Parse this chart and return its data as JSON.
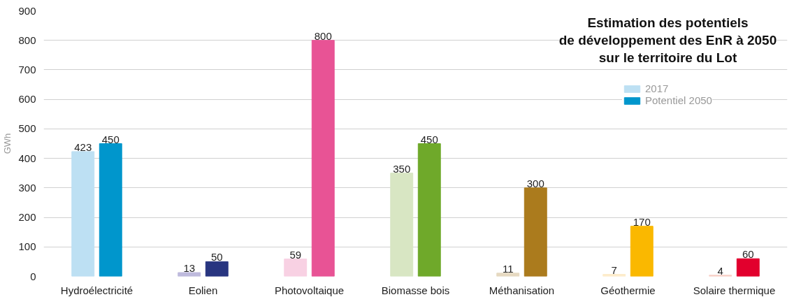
{
  "chart_data": {
    "type": "bar",
    "title": "Estimation des potentiels\nde développement des EnR à 2050\nsur le territoire du Lot",
    "ylabel": "GWh",
    "categories": [
      "Hydroélectricité",
      "Eolien",
      "Photovoltaique",
      "Biomasse bois",
      "Méthanisation",
      "Géothermie",
      "Solaire thermique"
    ],
    "series": [
      {
        "name": "2017",
        "color": "#bde0f3",
        "colors": [
          "#bde0f3",
          "#bebadd",
          "#f8d1e3",
          "#d8e6c3",
          "#e6d9c1",
          "#fdeccb",
          "#f8cfc6"
        ],
        "values": [
          423,
          13,
          59,
          350,
          11,
          7,
          4
        ]
      },
      {
        "name": "Potentiel 2050",
        "color": "#0096cc",
        "colors": [
          "#0096cc",
          "#283580",
          "#e85395",
          "#6fa92a",
          "#ab7b1d",
          "#fab800",
          "#e2002d"
        ],
        "values": [
          450,
          50,
          800,
          450,
          300,
          170,
          60
        ]
      }
    ],
    "ylim": [
      0,
      900
    ],
    "yticks": [
      0,
      100,
      200,
      300,
      400,
      500,
      600,
      700,
      800,
      900
    ],
    "grid": "y",
    "legend": "top right",
    "data_labels": true
  }
}
